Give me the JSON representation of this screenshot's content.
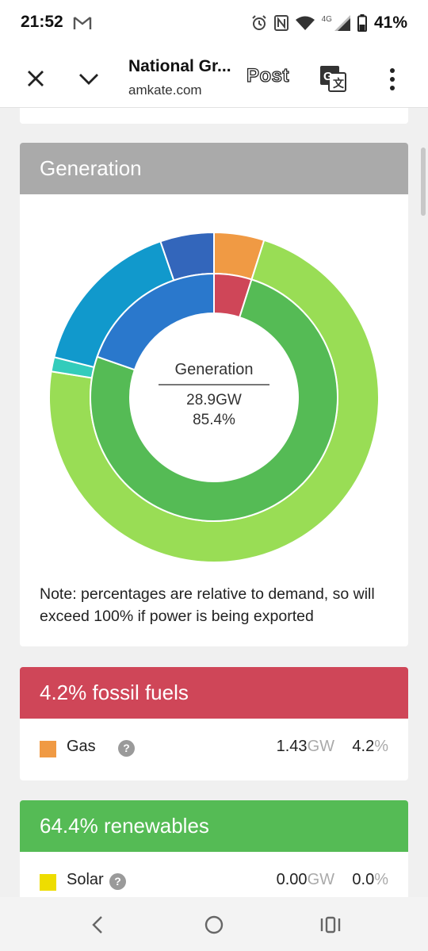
{
  "status_bar": {
    "time": "21:52",
    "network": "4G",
    "battery": "41%"
  },
  "tab_bar": {
    "title": "National Gr...",
    "url": "amkate.com",
    "post_label": "Post",
    "icons": [
      "close-icon",
      "chevron-down-icon",
      "translate-icon",
      "more-vert-icon"
    ]
  },
  "generation": {
    "header": "Generation",
    "center_label": "Generation",
    "center_value": "28.9GW",
    "center_percent": "85.4%",
    "note": "Note: percentages are relative to demand, so will exceed 100% if power is being exported"
  },
  "chart_data": {
    "type": "pie",
    "title": "Generation",
    "rings": [
      {
        "ring": "outer",
        "slices": [
          {
            "value": 4.2,
            "color": "#f09a44"
          },
          {
            "value": 62.0,
            "color": "#99dd55"
          },
          {
            "value": 1.2,
            "color": "#33ccbb"
          },
          {
            "value": 13.5,
            "color": "#1199cc"
          },
          {
            "value": 4.5,
            "color": "#3366bb"
          }
        ]
      },
      {
        "ring": "inner",
        "slices": [
          {
            "value": 4.2,
            "color": "#cf4658"
          },
          {
            "value": 64.4,
            "color": "#55bb55"
          },
          {
            "value": 16.8,
            "color": "#2a78cc"
          }
        ]
      }
    ]
  },
  "fossil": {
    "header": "4.2% fossil fuels",
    "rows": [
      {
        "name": "Gas",
        "color": "#f09a44",
        "gw": "1.43",
        "gw_unit": "GW",
        "pct": "4.2",
        "pct_unit": "%"
      }
    ]
  },
  "renewables": {
    "header": "64.4% renewables",
    "rows": [
      {
        "name": "Solar",
        "color": "#eedd00",
        "gw": "0.00",
        "gw_unit": "GW",
        "pct": "0.0",
        "pct_unit": "%"
      }
    ]
  },
  "help_glyph": "?"
}
